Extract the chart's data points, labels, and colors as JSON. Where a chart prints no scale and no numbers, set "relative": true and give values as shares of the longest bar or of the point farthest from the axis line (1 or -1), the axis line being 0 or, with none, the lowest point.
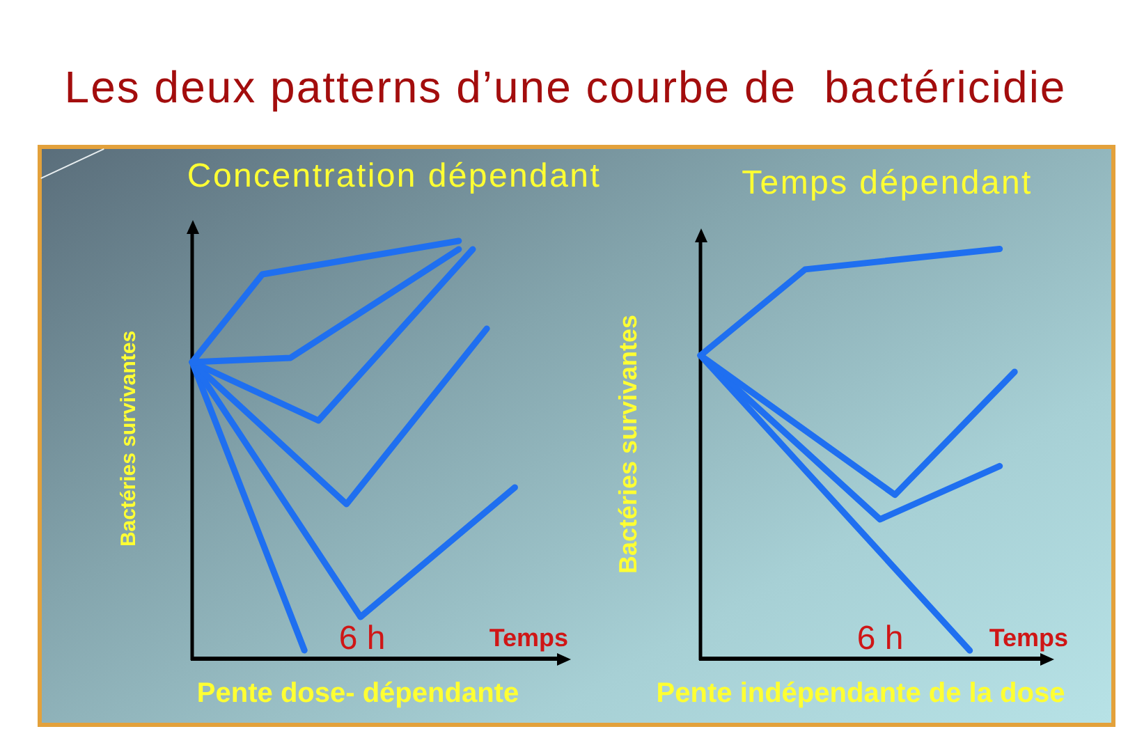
{
  "chart_data": [
    {
      "type": "other",
      "title": "Les deux patterns d’une courbe de  bactéricidie"
    },
    {
      "type": "line",
      "title": "Concentration dépendant",
      "xlabel": "Temps",
      "ylabel": "Bactéries survivantes",
      "annotations": [
        "6 h",
        "Pente dose- dépendante"
      ],
      "relative": true,
      "categories": [
        null,
        null,
        null,
        null,
        null,
        null,
        null,
        null,
        null,
        null,
        null,
        null,
        null,
        null,
        null,
        null,
        null,
        null,
        null,
        null,
        null,
        null,
        null,
        null,
        null,
        null,
        null,
        null
      ],
      "series": [
        {
          "color": "#1f6ff0",
          "values": [
            0.71,
            null,
            null,
            null,
            null,
            0.92,
            null,
            null,
            null,
            null,
            null,
            null,
            null,
            null,
            null,
            null,
            null,
            null,
            null,
            1.0,
            null,
            null,
            null,
            null,
            null,
            null,
            null,
            null
          ]
        },
        {
          "color": "#1f6ff0",
          "values": [
            0.71,
            null,
            null,
            null,
            null,
            null,
            null,
            0.72,
            null,
            null,
            null,
            null,
            null,
            null,
            null,
            null,
            null,
            null,
            null,
            0.98,
            null,
            null,
            null,
            null,
            null,
            null,
            null,
            null
          ]
        },
        {
          "color": "#1f6ff0",
          "values": [
            0.71,
            null,
            null,
            null,
            null,
            null,
            null,
            null,
            null,
            0.57,
            null,
            null,
            null,
            null,
            null,
            null,
            null,
            null,
            null,
            null,
            0.98,
            null,
            null,
            null,
            null,
            null,
            null,
            null
          ]
        },
        {
          "color": "#1f6ff0",
          "values": [
            0.71,
            null,
            null,
            null,
            null,
            null,
            null,
            null,
            null,
            null,
            null,
            0.37,
            null,
            null,
            null,
            null,
            null,
            null,
            null,
            null,
            null,
            0.79,
            null,
            null,
            null,
            null,
            null,
            null
          ]
        },
        {
          "color": "#1f6ff0",
          "values": [
            0.71,
            null,
            null,
            null,
            null,
            null,
            null,
            null,
            null,
            null,
            null,
            null,
            0.1,
            null,
            null,
            null,
            null,
            null,
            null,
            null,
            null,
            null,
            null,
            0.41,
            null,
            null,
            null,
            null
          ]
        },
        {
          "color": "#1f6ff0",
          "values": [
            0.71,
            null,
            null,
            null,
            null,
            null,
            null,
            null,
            0.02,
            null,
            null,
            null,
            null,
            null,
            null,
            null,
            null,
            null,
            null,
            null,
            null,
            null,
            null,
            null,
            null,
            null,
            null,
            null
          ]
        }
      ]
    },
    {
      "type": "line",
      "title": "Temps dépendant",
      "xlabel": "Temps",
      "ylabel": "Bactéries survivantes",
      "annotations": [
        "6 h",
        "Pente indépendante de la dose"
      ],
      "relative": true,
      "categories": [
        null,
        null,
        null,
        null,
        null,
        null,
        null,
        null,
        null,
        null,
        null,
        null,
        null,
        null,
        null,
        null,
        null,
        null,
        null,
        null,
        null,
        null,
        null,
        null
      ],
      "series": [
        {
          "color": "#1f6ff0",
          "values": [
            0.74,
            null,
            null,
            null,
            null,
            null,
            null,
            0.95,
            null,
            null,
            null,
            null,
            null,
            null,
            null,
            null,
            null,
            null,
            null,
            null,
            1.0,
            null,
            null,
            null
          ]
        },
        {
          "color": "#1f6ff0",
          "values": [
            0.74,
            null,
            null,
            null,
            null,
            null,
            null,
            null,
            null,
            null,
            null,
            null,
            null,
            0.4,
            null,
            null,
            null,
            null,
            null,
            null,
            null,
            0.7,
            null,
            null
          ]
        },
        {
          "color": "#1f6ff0",
          "values": [
            0.74,
            null,
            null,
            null,
            null,
            null,
            null,
            null,
            null,
            null,
            null,
            null,
            0.34,
            null,
            null,
            null,
            null,
            null,
            null,
            null,
            0.47,
            null,
            null,
            null
          ]
        },
        {
          "color": "#1f6ff0",
          "values": [
            0.74,
            null,
            null,
            null,
            null,
            null,
            null,
            null,
            null,
            null,
            null,
            null,
            null,
            null,
            null,
            null,
            null,
            null,
            0.02,
            null,
            null,
            null,
            null,
            null
          ]
        }
      ]
    }
  ]
}
